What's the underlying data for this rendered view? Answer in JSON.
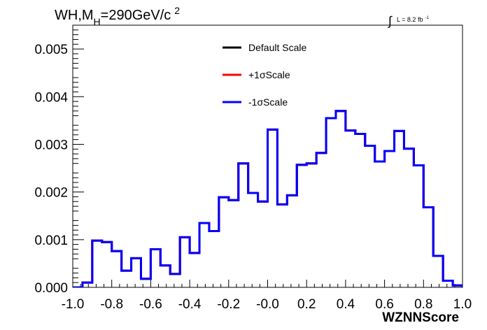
{
  "chart_data": {
    "type": "line",
    "title_parts": {
      "main": "WH,M",
      "sub": "H",
      "mid": "=290GeV/c",
      "sup": "2"
    },
    "lumi_label": {
      "integral": "∫",
      "text": "L = 8.2 fb",
      "exponent": "-1"
    },
    "xlabel": "WZNNScore",
    "xlim": [
      -1.0,
      1.0
    ],
    "ylim": [
      0.0,
      0.0055
    ],
    "x_ticks": [
      "-1.0",
      "-0.8",
      "-0.6",
      "-0.4",
      "-0.2",
      "-0.0",
      "0.2",
      "0.4",
      "0.6",
      "0.8",
      "1.0"
    ],
    "y_ticks": [
      "0.000",
      "0.001",
      "0.002",
      "0.003",
      "0.004",
      "0.005"
    ],
    "grid": false,
    "legend_position": "top-center",
    "bin_edges_start": -1.0,
    "bin_width": 0.05,
    "series": [
      {
        "name": "Default Scale",
        "color": "#000000",
        "values": [
          0.0,
          0.0001,
          0.00098,
          0.00095,
          0.00076,
          0.00035,
          0.00061,
          0.00018,
          0.0008,
          0.00046,
          0.00028,
          0.00105,
          0.00072,
          0.00135,
          0.00118,
          0.00189,
          0.00183,
          0.0026,
          0.00198,
          0.0018,
          0.00331,
          0.00174,
          0.00193,
          0.00257,
          0.0026,
          0.00282,
          0.00355,
          0.0037,
          0.00329,
          0.00322,
          0.00297,
          0.00264,
          0.00286,
          0.00328,
          0.00291,
          0.00256,
          0.00168,
          0.00066,
          0.00014,
          4e-05,
          0.0
        ]
      },
      {
        "name": "+1σScale",
        "color": "#ff0000",
        "values": [
          0.0,
          0.0001,
          0.00098,
          0.00095,
          0.00076,
          0.00035,
          0.00061,
          0.00018,
          0.0008,
          0.00046,
          0.00028,
          0.00105,
          0.00072,
          0.00135,
          0.00118,
          0.00189,
          0.00183,
          0.0026,
          0.00198,
          0.0018,
          0.00331,
          0.00174,
          0.00193,
          0.00257,
          0.0026,
          0.00282,
          0.00355,
          0.0037,
          0.00329,
          0.00322,
          0.00297,
          0.00264,
          0.00286,
          0.00328,
          0.00291,
          0.00256,
          0.00168,
          0.00066,
          0.00014,
          4e-05,
          0.0
        ]
      },
      {
        "name": "-1σScale",
        "color": "#0000ff",
        "values": [
          0.0,
          0.0001,
          0.00098,
          0.00095,
          0.00076,
          0.00035,
          0.00061,
          0.00018,
          0.0008,
          0.00046,
          0.00028,
          0.00105,
          0.00072,
          0.00135,
          0.00118,
          0.00189,
          0.00183,
          0.0026,
          0.00198,
          0.0018,
          0.00331,
          0.00174,
          0.00193,
          0.00257,
          0.0026,
          0.00282,
          0.00355,
          0.0037,
          0.00329,
          0.00322,
          0.00297,
          0.00264,
          0.00286,
          0.00328,
          0.00291,
          0.00256,
          0.00168,
          0.00066,
          0.00014,
          4e-05,
          0.0
        ]
      }
    ]
  }
}
